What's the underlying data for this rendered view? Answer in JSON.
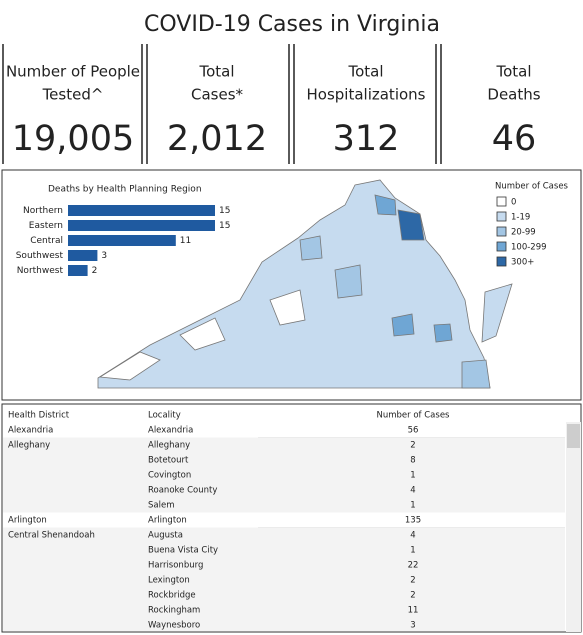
{
  "header": {
    "title": "COVID-19 Cases in Virginia"
  },
  "kpis": [
    {
      "label": [
        "Number of People",
        "Tested^"
      ],
      "value": "19,005"
    },
    {
      "label": [
        "Total",
        "Cases*"
      ],
      "value": "2,012"
    },
    {
      "label": [
        "Total",
        "Hospitalizations"
      ],
      "value": "312"
    },
    {
      "label": [
        "Total",
        "Deaths"
      ],
      "value": "46"
    }
  ],
  "chart_data": {
    "type": "bar",
    "orientation": "horizontal",
    "title": "Deaths by Health Planning Region",
    "categories": [
      "Northern",
      "Eastern",
      "Central",
      "Southwest",
      "Northwest"
    ],
    "values": [
      15,
      15,
      11,
      3,
      2
    ],
    "color": "#1f5aa0"
  },
  "map": {
    "legend_title": "Number of Cases",
    "legend": [
      {
        "label": "0",
        "color": "#ffffff"
      },
      {
        "label": "1-19",
        "color": "#c6dbef"
      },
      {
        "label": "20-99",
        "color": "#a3c6e4"
      },
      {
        "label": "100-299",
        "color": "#6fa6d4"
      },
      {
        "label": "300+",
        "color": "#2d68a6"
      }
    ]
  },
  "table": {
    "columns": [
      "Health District",
      "Locality",
      "Number of Cases"
    ],
    "groups": [
      {
        "district": "Alexandria",
        "rows": [
          [
            "Alexandria",
            "56"
          ]
        ]
      },
      {
        "district": "Alleghany",
        "rows": [
          [
            "Alleghany",
            "2"
          ],
          [
            "Botetourt",
            "8"
          ],
          [
            "Covington",
            "1"
          ],
          [
            "Roanoke County",
            "4"
          ],
          [
            "Salem",
            "1"
          ]
        ]
      },
      {
        "district": "Arlington",
        "rows": [
          [
            "Arlington",
            "135"
          ]
        ]
      },
      {
        "district": "Central Shenandoah",
        "rows": [
          [
            "Augusta",
            "4"
          ],
          [
            "Buena Vista City",
            "1"
          ],
          [
            "Harrisonburg",
            "22"
          ],
          [
            "Lexington",
            "2"
          ],
          [
            "Rockbridge",
            "2"
          ],
          [
            "Rockingham",
            "11"
          ],
          [
            "Waynesboro",
            "3"
          ]
        ]
      }
    ]
  }
}
